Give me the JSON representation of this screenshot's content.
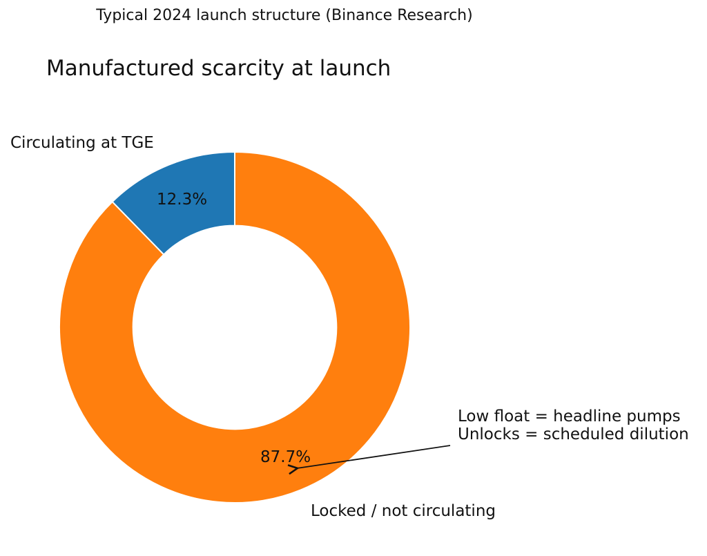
{
  "chart_data": {
    "type": "pie",
    "subtype": "donut",
    "suptitle": "Typical 2024 launch structure (Binance Research)",
    "title": "Manufactured scarcity at launch",
    "categories": [
      "Circulating at TGE",
      "Locked / not circulating"
    ],
    "values": [
      12.3,
      87.7
    ],
    "slices": [
      {
        "label": "Circulating at TGE",
        "value": 12.3,
        "pct_label": "12.3%",
        "color": "#1f77b4"
      },
      {
        "label": "Locked / not circulating",
        "value": 87.7,
        "pct_label": "87.7%",
        "color": "#ff7f0e"
      }
    ],
    "start_angle": 90,
    "counterclockwise": true,
    "donut_hole_ratio": 0.58,
    "wedge_edge_color": "#ffffff",
    "text_color": "#111111",
    "legend_position": "none",
    "annotation": {
      "lines": [
        "Low float = headline pumps",
        "Unlocks = scheduled dilution"
      ]
    }
  }
}
